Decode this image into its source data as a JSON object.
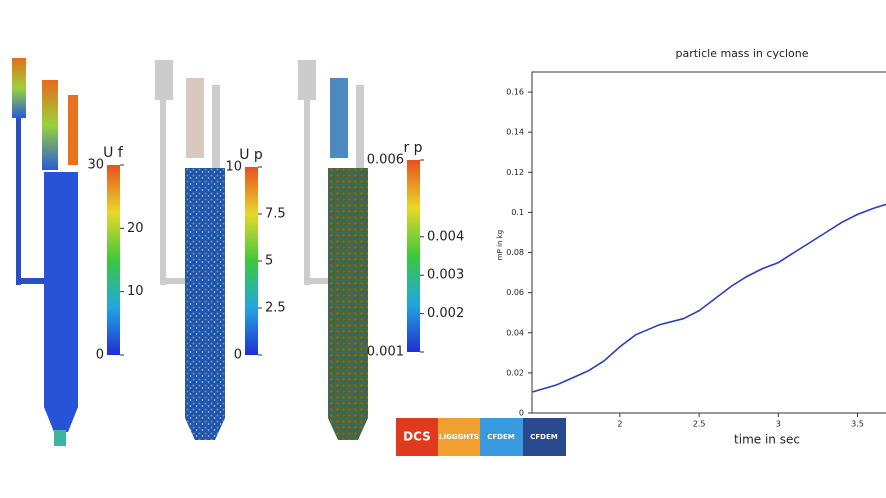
{
  "chart_data": {
    "type": "line",
    "title": "particle mass in cyclone",
    "x_label": "time in sec",
    "y_label": "mP in kg",
    "x": [
      1.45,
      1.6,
      1.8,
      1.9,
      2.0,
      2.1,
      2.25,
      2.4,
      2.5,
      2.6,
      2.7,
      2.8,
      2.9,
      3.0,
      3.1,
      3.2,
      3.3,
      3.4,
      3.5,
      3.6,
      3.68
    ],
    "values": [
      0.0105,
      0.014,
      0.021,
      0.026,
      0.033,
      0.039,
      0.044,
      0.047,
      0.051,
      0.057,
      0.063,
      0.068,
      0.072,
      0.075,
      0.08,
      0.085,
      0.09,
      0.095,
      0.099,
      0.102,
      0.104
    ],
    "color": "#2b3fb5",
    "xlim": [
      1.445,
      3.68
    ],
    "xticks": [
      2,
      2.5,
      3,
      3.5
    ],
    "ylim": [
      0,
      0.17
    ],
    "yticks": [
      0,
      0.02,
      0.04,
      0.06,
      0.08,
      0.1,
      0.12,
      0.14,
      0.16
    ]
  },
  "colorbars": [
    {
      "label": "U f",
      "lim": [
        0,
        30
      ],
      "ticks": [
        0,
        10,
        20,
        30
      ]
    },
    {
      "label": "U p",
      "lim": [
        0,
        10
      ],
      "ticks": [
        0,
        2.5,
        5,
        7.5,
        10
      ]
    },
    {
      "label": "r p",
      "lim": [
        0.001,
        0.006
      ],
      "ticks": [
        0.001,
        0.002,
        0.003,
        0.004,
        0.006
      ]
    }
  ],
  "logos": [
    "DCS",
    "LIGGGHTS",
    "CFDEM",
    "CFDEM"
  ]
}
